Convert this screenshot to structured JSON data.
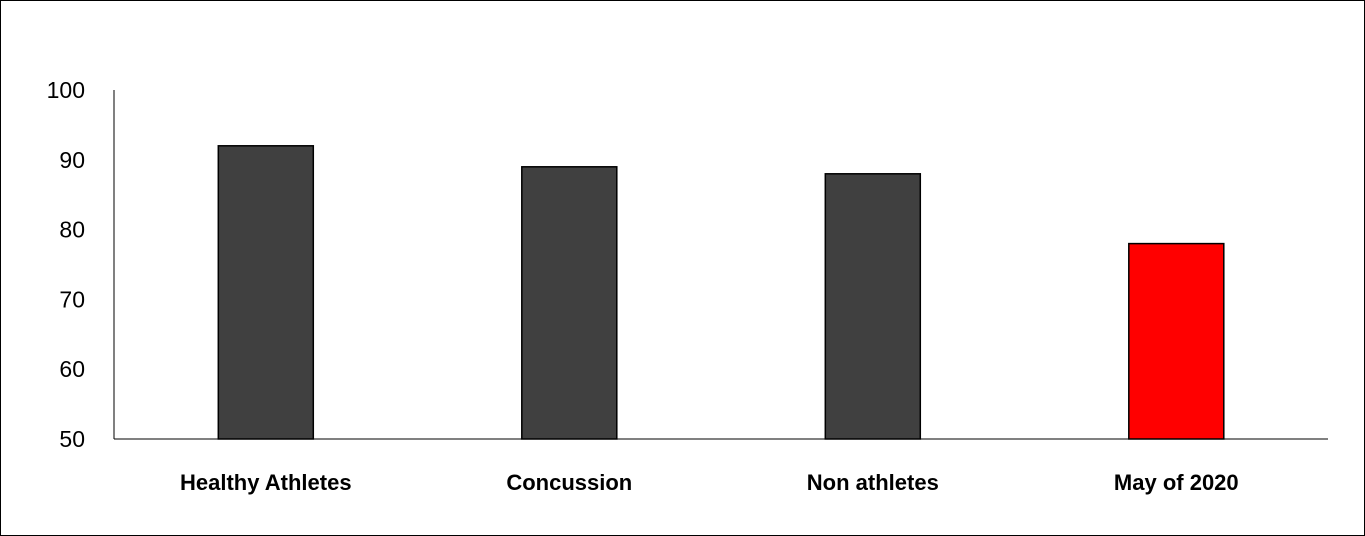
{
  "chart_data": {
    "type": "bar",
    "categories": [
      "Healthy Athletes",
      "Concussion",
      "Non athletes",
      "May of 2020"
    ],
    "values": [
      92,
      89,
      88,
      78
    ],
    "bar_colors": [
      "#404040",
      "#404040",
      "#404040",
      "#ff0000"
    ],
    "ylim": [
      50,
      100
    ],
    "yticks": [
      50,
      60,
      70,
      80,
      90,
      100
    ],
    "grid": false,
    "title": "",
    "xlabel": "",
    "ylabel": ""
  }
}
